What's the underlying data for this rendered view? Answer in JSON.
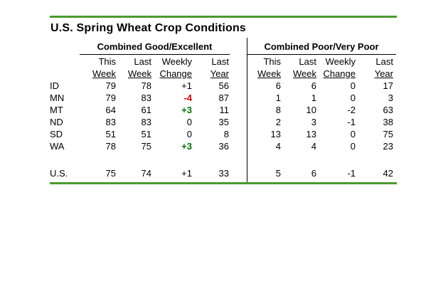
{
  "title": "U.S. Spring Wheat Crop Conditions",
  "sections": {
    "good_excellent": "Combined Good/Excellent",
    "poor_very_poor": "Combined Poor/Very Poor"
  },
  "columns": {
    "line1": [
      "This",
      "Last",
      "Weekly",
      "Last"
    ],
    "line2": [
      "Week",
      "Week",
      "Change",
      "Year"
    ]
  },
  "rows": [
    {
      "state": "ID",
      "ge_this": "79",
      "ge_last": "78",
      "ge_change": "+1",
      "ge_change_class": "",
      "ge_year": "56",
      "pvp_this": "6",
      "pvp_last": "6",
      "pvp_change": "0",
      "pvp_change_class": "",
      "pvp_year": "17"
    },
    {
      "state": "MN",
      "ge_this": "79",
      "ge_last": "83",
      "ge_change": "-4",
      "ge_change_class": "neg",
      "ge_year": "87",
      "pvp_this": "1",
      "pvp_last": "1",
      "pvp_change": "0",
      "pvp_change_class": "",
      "pvp_year": "3"
    },
    {
      "state": "MT",
      "ge_this": "64",
      "ge_last": "61",
      "ge_change": "+3",
      "ge_change_class": "pos",
      "ge_year": "11",
      "pvp_this": "8",
      "pvp_last": "10",
      "pvp_change": "-2",
      "pvp_change_class": "",
      "pvp_year": "63"
    },
    {
      "state": "ND",
      "ge_this": "83",
      "ge_last": "83",
      "ge_change": "0",
      "ge_change_class": "",
      "ge_year": "35",
      "pvp_this": "2",
      "pvp_last": "3",
      "pvp_change": "-1",
      "pvp_change_class": "",
      "pvp_year": "38"
    },
    {
      "state": "SD",
      "ge_this": "51",
      "ge_last": "51",
      "ge_change": "0",
      "ge_change_class": "",
      "ge_year": "8",
      "pvp_this": "13",
      "pvp_last": "13",
      "pvp_change": "0",
      "pvp_change_class": "",
      "pvp_year": "75"
    },
    {
      "state": "WA",
      "ge_this": "78",
      "ge_last": "75",
      "ge_change": "+3",
      "ge_change_class": "pos",
      "ge_year": "36",
      "pvp_this": "4",
      "pvp_last": "4",
      "pvp_change": "0",
      "pvp_change_class": "",
      "pvp_year": "23"
    }
  ],
  "us_row": {
    "state": "U.S.",
    "ge_this": "75",
    "ge_last": "74",
    "ge_change": "+1",
    "ge_change_class": "",
    "ge_year": "33",
    "pvp_this": "5",
    "pvp_last": "6",
    "pvp_change": "-1",
    "pvp_change_class": "",
    "pvp_year": "42"
  },
  "colors": {
    "rule_green": "#4A9B2D",
    "negative_change": "#E60000",
    "positive_change": "#007300"
  }
}
